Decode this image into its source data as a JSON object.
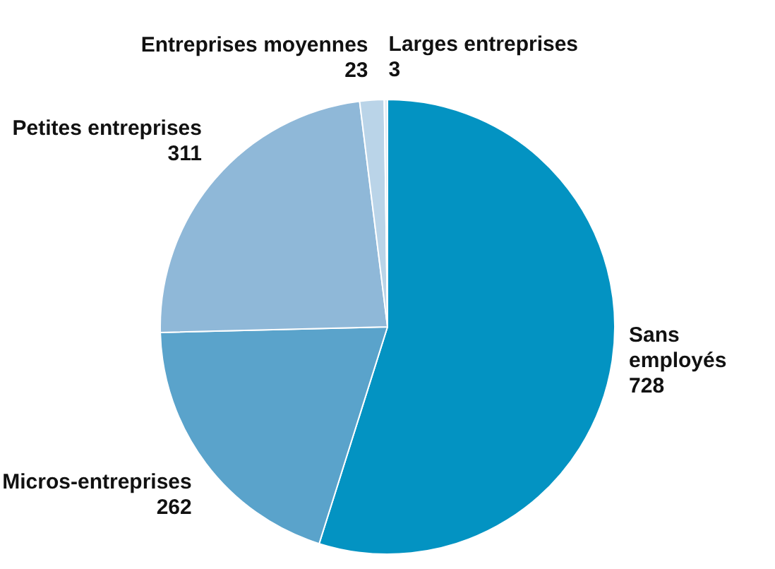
{
  "chart_data": {
    "type": "pie",
    "categories": [
      "Sans employés",
      "Micros-entreprises",
      "Petites entreprises",
      "Entreprises moyennes",
      "Larges entreprises"
    ],
    "values": [
      728,
      262,
      311,
      23,
      3
    ],
    "colors": [
      "#0393c2",
      "#5aa3cb",
      "#8fb8d8",
      "#bad4e8",
      "#dfeaf4"
    ],
    "data_labels": true,
    "legend": false
  }
}
